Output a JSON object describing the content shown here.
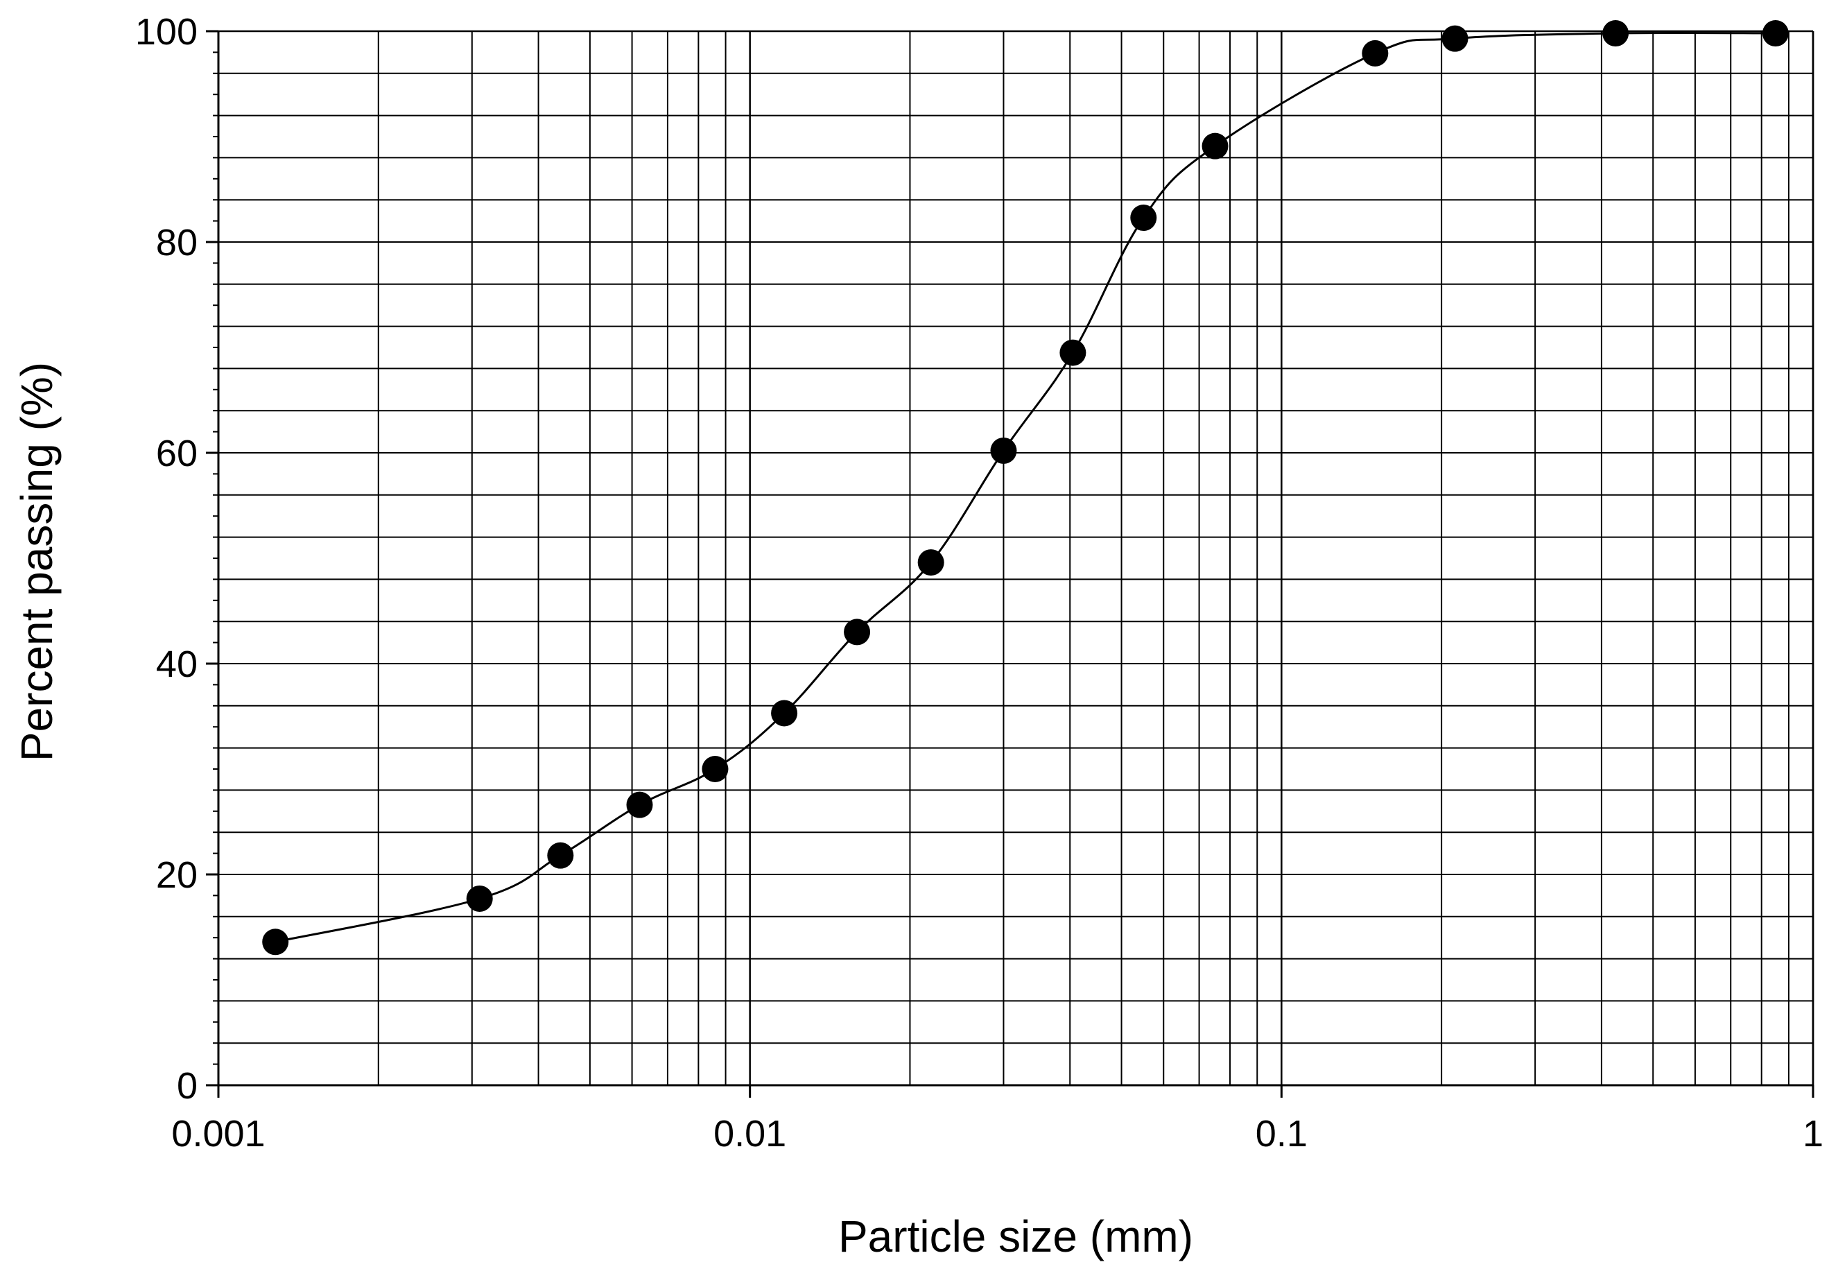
{
  "chart_data": {
    "type": "scatter",
    "title": "",
    "xlabel": "Particle size (mm)",
    "ylabel": "Percent passing (%)",
    "xscale": "log",
    "xlim": [
      0.001,
      1
    ],
    "ylim": [
      0,
      100
    ],
    "x_ticks": [
      {
        "value": 0.001,
        "label": "0.001"
      },
      {
        "value": 0.01,
        "label": "0.01"
      },
      {
        "value": 0.1,
        "label": "0.1"
      },
      {
        "value": 1,
        "label": "1"
      }
    ],
    "y_ticks": [
      {
        "value": 0,
        "label": "0"
      },
      {
        "value": 20,
        "label": "20"
      },
      {
        "value": 40,
        "label": "40"
      },
      {
        "value": 60,
        "label": "60"
      },
      {
        "value": 80,
        "label": "80"
      },
      {
        "value": 100,
        "label": "100"
      }
    ],
    "grid": true,
    "legend": false,
    "series": [
      {
        "marker": "filled-circle",
        "line": "smooth",
        "color": "#000000",
        "points": [
          {
            "x": 0.00128,
            "y": 13.6
          },
          {
            "x": 0.0031,
            "y": 17.7
          },
          {
            "x": 0.0044,
            "y": 21.8
          },
          {
            "x": 0.0062,
            "y": 26.6
          },
          {
            "x": 0.0086,
            "y": 30.0
          },
          {
            "x": 0.0116,
            "y": 35.3
          },
          {
            "x": 0.0159,
            "y": 43.0
          },
          {
            "x": 0.0219,
            "y": 49.6
          },
          {
            "x": 0.03,
            "y": 60.2
          },
          {
            "x": 0.0405,
            "y": 69.5
          },
          {
            "x": 0.055,
            "y": 82.3
          },
          {
            "x": 0.075,
            "y": 89.1
          },
          {
            "x": 0.15,
            "y": 97.9
          },
          {
            "x": 0.212,
            "y": 99.3
          },
          {
            "x": 0.425,
            "y": 99.8
          },
          {
            "x": 0.85,
            "y": 99.8
          }
        ]
      }
    ]
  }
}
